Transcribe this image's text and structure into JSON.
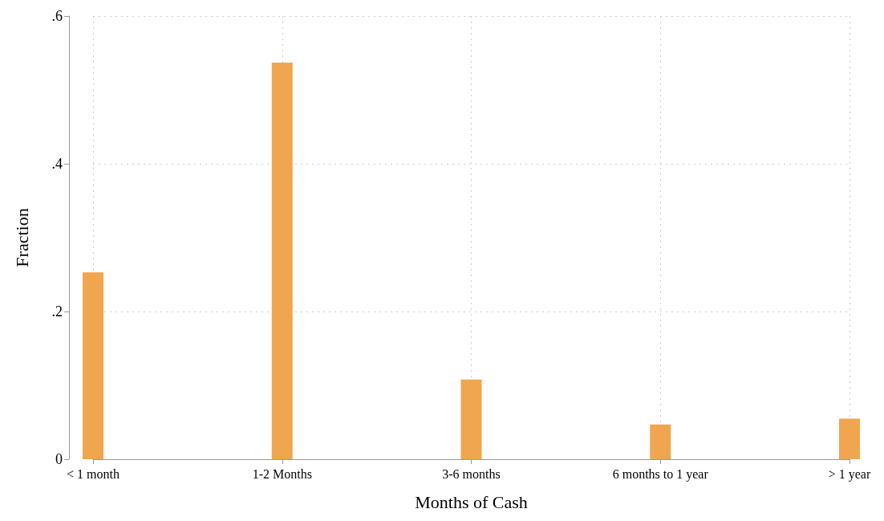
{
  "chart_data": {
    "type": "bar",
    "xlabel": "Months of Cash",
    "ylabel": "Fraction",
    "categories": [
      "< 1 month",
      "1-2 Months",
      "3-6 months",
      "6 months to 1 year",
      "> 1 year"
    ],
    "values": [
      0.253,
      0.537,
      0.108,
      0.047,
      0.055
    ],
    "color": "#f0a64e",
    "ylim": [
      0,
      0.6
    ],
    "yticks": [
      0,
      {
        "value": 0.2,
        "label": ".2"
      },
      {
        "value": 0.4,
        "label": ".4"
      },
      {
        "value": 0.6,
        "label": ".6"
      }
    ],
    "grid": true
  }
}
